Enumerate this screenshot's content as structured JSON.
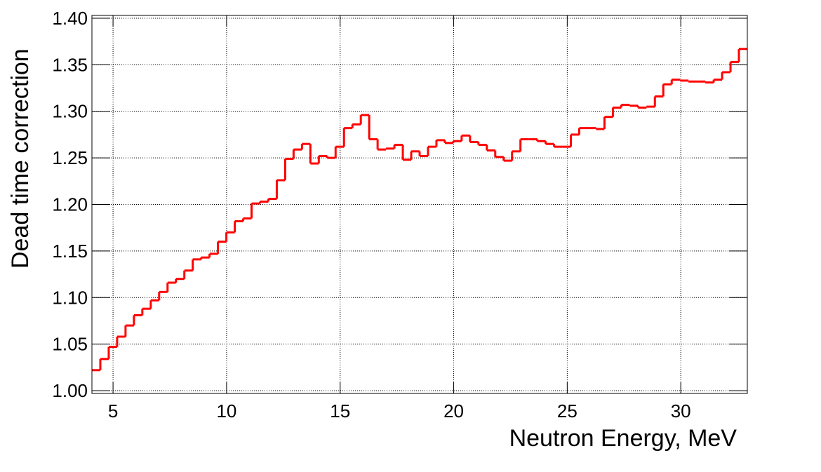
{
  "chart_data": {
    "type": "histogram",
    "x_label": "Neutron Energy, MeV",
    "y_label": "Dead time correction",
    "bins": [
      4.07,
      4.44,
      4.81,
      5.18,
      5.55,
      5.92,
      6.29,
      6.66,
      7.03,
      7.4,
      7.77,
      8.14,
      8.51,
      8.88,
      9.25,
      9.62,
      9.99,
      10.36,
      10.73,
      11.1,
      11.47,
      11.84,
      12.21,
      12.58,
      12.95,
      13.32,
      13.69,
      14.06,
      14.43,
      14.8,
      15.17,
      15.54,
      15.91,
      16.28,
      16.65,
      17.02,
      17.39,
      17.76,
      18.13,
      18.5,
      18.87,
      19.24,
      19.61,
      19.98,
      20.35,
      20.72,
      21.09,
      21.46,
      21.83,
      22.2,
      22.57,
      22.94,
      23.31,
      23.68,
      24.05,
      24.42,
      24.79,
      25.16,
      25.53,
      25.9,
      26.27,
      26.64,
      27.01,
      27.38,
      27.75,
      28.12,
      28.49,
      28.86,
      29.23,
      29.6,
      29.97,
      30.34,
      30.71,
      31.08,
      31.45,
      31.82,
      32.19,
      32.56,
      32.93
    ],
    "values": [
      1.022,
      1.034,
      1.047,
      1.058,
      1.07,
      1.081,
      1.088,
      1.097,
      1.106,
      1.116,
      1.12,
      1.129,
      1.141,
      1.143,
      1.147,
      1.16,
      1.17,
      1.182,
      1.185,
      1.201,
      1.203,
      1.206,
      1.226,
      1.249,
      1.259,
      1.265,
      1.244,
      1.252,
      1.25,
      1.262,
      1.282,
      1.286,
      1.296,
      1.27,
      1.259,
      1.26,
      1.264,
      1.248,
      1.257,
      1.252,
      1.262,
      1.269,
      1.266,
      1.268,
      1.274,
      1.267,
      1.264,
      1.258,
      1.251,
      1.247,
      1.257,
      1.27,
      1.27,
      1.268,
      1.265,
      1.262,
      1.262,
      1.275,
      1.282,
      1.282,
      1.281,
      1.294,
      1.304,
      1.307,
      1.306,
      1.304,
      1.305,
      1.316,
      1.329,
      1.334,
      1.333,
      1.332,
      1.332,
      1.331,
      1.334,
      1.342,
      1.353,
      1.367
    ],
    "color": "#ff0000",
    "xlim": [
      4.07,
      32.93
    ],
    "ylim": [
      0.997,
      1.403
    ],
    "xticks": [
      5,
      10,
      15,
      20,
      25,
      30
    ],
    "yticks": [
      {
        "value": 1.0,
        "label": "1.00"
      },
      {
        "value": 1.05,
        "label": "1.05"
      },
      {
        "value": 1.1,
        "label": "1.10"
      },
      {
        "value": 1.15,
        "label": "1.15"
      },
      {
        "value": 1.2,
        "label": "1.20"
      },
      {
        "value": 1.25,
        "label": "1.25"
      },
      {
        "value": 1.3,
        "label": "1.30"
      },
      {
        "value": 1.35,
        "label": "1.35"
      },
      {
        "value": 1.4,
        "label": "1.40"
      }
    ],
    "grid": true
  }
}
